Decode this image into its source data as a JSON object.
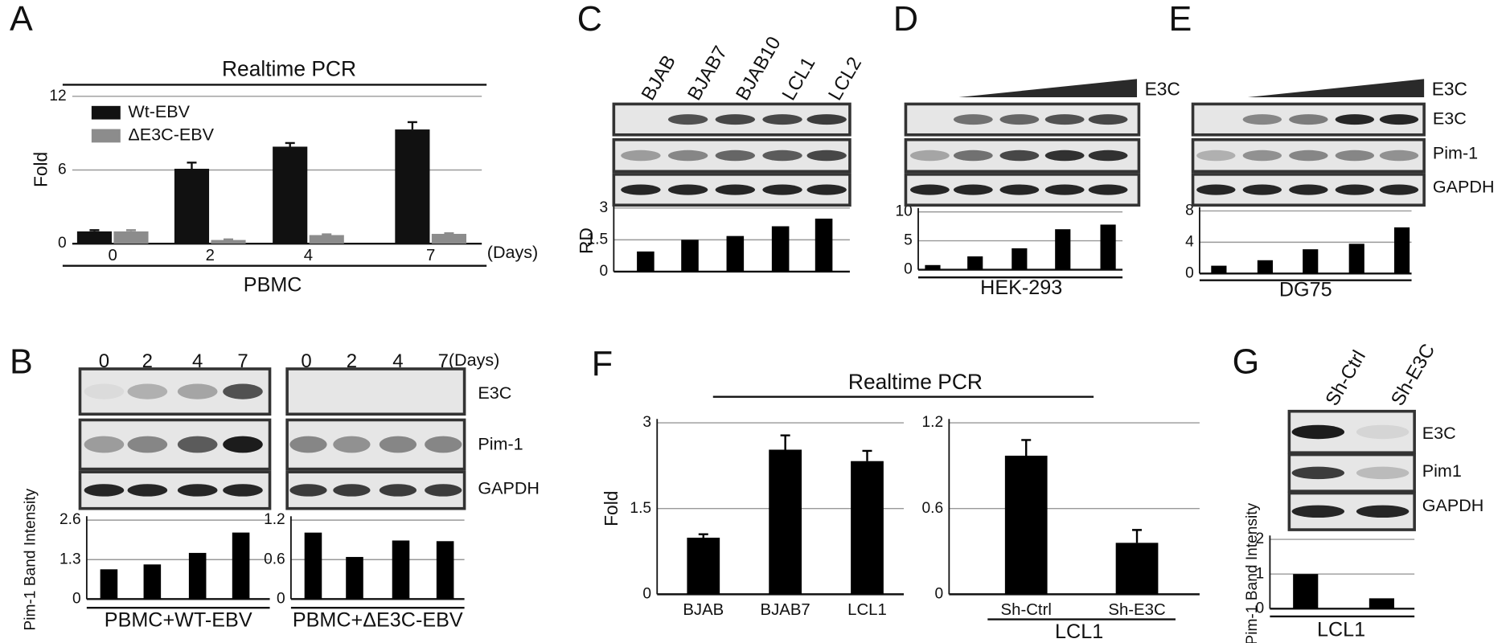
{
  "chart_data": [
    {
      "panel": "A",
      "type": "bar",
      "title": "Realtime PCR",
      "xlabel": "PBMC",
      "ylabel": "Fold",
      "x_unit": "(Days)",
      "categories": [
        "0",
        "2",
        "4",
        "7"
      ],
      "series": [
        {
          "name": "Wt-EBV",
          "color": "#111111",
          "values": [
            1,
            6.1,
            7.9,
            9.3
          ],
          "errors": [
            0.1,
            0.5,
            0.3,
            0.6
          ]
        },
        {
          "name": "ΔE3C-EBV",
          "color": "#8c8c8c",
          "values": [
            1,
            0.3,
            0.7,
            0.8
          ],
          "errors": [
            0.1,
            0.05,
            0.06,
            0.05
          ]
        }
      ],
      "ylim": [
        0,
        12
      ],
      "yticks": [
        0,
        6,
        12
      ],
      "grid": true
    },
    {
      "panel": "B",
      "type": "bar",
      "lanes": [
        "0",
        "2",
        "4",
        "7"
      ],
      "ylabel": "Pim-1 Band Intensity",
      "xlabel": "PBMC+WT-EBV",
      "values": [
        0.98,
        1.14,
        1.52,
        2.19
      ],
      "color": "#000000",
      "ylim": [
        0,
        2.6
      ],
      "yticks": [
        0,
        1.3,
        2.6
      ],
      "grid": true
    },
    {
      "type": "bar",
      "lanes": [
        "0",
        "2",
        "4",
        "7"
      ],
      "x_unit": "(Days)",
      "blot_labels": [
        "E3C",
        "Pim-1",
        "GAPDH"
      ],
      "xlabel": "PBMC+ΔE3C-EBV",
      "values": [
        1.01,
        0.64,
        0.89,
        0.88
      ],
      "color": "#000000",
      "ylim": [
        0,
        1.2
      ],
      "yticks": [
        0,
        0.6,
        1.2
      ],
      "grid": true
    },
    {
      "panel": "C",
      "type": "bar",
      "lanes": [
        "BJAB",
        "BJAB7",
        "BJAB10",
        "LCL1",
        "LCL2"
      ],
      "ylabel": "RD",
      "values": [
        0.95,
        1.5,
        1.68,
        2.14,
        2.5
      ],
      "color": "#000000",
      "ylim": [
        0,
        3
      ],
      "yticks": [
        0,
        1.5,
        3
      ],
      "grid": true
    },
    {
      "panel": "D",
      "type": "bar",
      "triangle_label": "E3C",
      "xlabel": "HEK-293",
      "values": [
        0.8,
        2.3,
        3.7,
        7,
        7.8
      ],
      "color": "#000000",
      "ylim": [
        0,
        10
      ],
      "yticks": [
        0,
        5,
        10
      ],
      "grid": true
    },
    {
      "panel": "E",
      "type": "bar",
      "triangle_label": "E3C",
      "blot_labels": [
        "E3C",
        "Pim-1",
        "GAPDH"
      ],
      "xlabel": "DG75",
      "values": [
        1,
        1.7,
        3.1,
        3.8,
        5.9
      ],
      "color": "#000000",
      "ylim": [
        0,
        8
      ],
      "yticks": [
        0,
        4,
        8
      ],
      "grid": true
    },
    {
      "panel": "F",
      "type": "bar",
      "title": "Realtime PCR",
      "ylabel": "Fold",
      "categories": [
        "BJAB",
        "BJAB7",
        "LCL1"
      ],
      "values": [
        0.99,
        2.53,
        2.33
      ],
      "errors": [
        0.06,
        0.25,
        0.18
      ],
      "color": "#000000",
      "ylim": [
        0,
        3
      ],
      "yticks": [
        0,
        1.5,
        3
      ],
      "grid": true
    },
    {
      "type": "bar",
      "categories": [
        "Sh-Ctrl",
        "Sh-E3C"
      ],
      "xlabel": "LCL1",
      "values": [
        0.97,
        0.36
      ],
      "errors": [
        0.11,
        0.09
      ],
      "color": "#000000",
      "ylim": [
        0,
        1.2
      ],
      "yticks": [
        0,
        0.6,
        1.2
      ],
      "grid": true
    },
    {
      "panel": "G",
      "type": "bar",
      "lanes": [
        "Sh-Ctrl",
        "Sh-E3C"
      ],
      "blot_labels": [
        "E3C",
        "Pim1",
        "GAPDH"
      ],
      "ylabel": "Pim-1 Band Intensity",
      "xlabel": "LCL1",
      "values": [
        1,
        0.3
      ],
      "color": "#000000",
      "ylim": [
        0,
        2
      ],
      "yticks": [
        0,
        1,
        2
      ],
      "grid": true
    }
  ]
}
